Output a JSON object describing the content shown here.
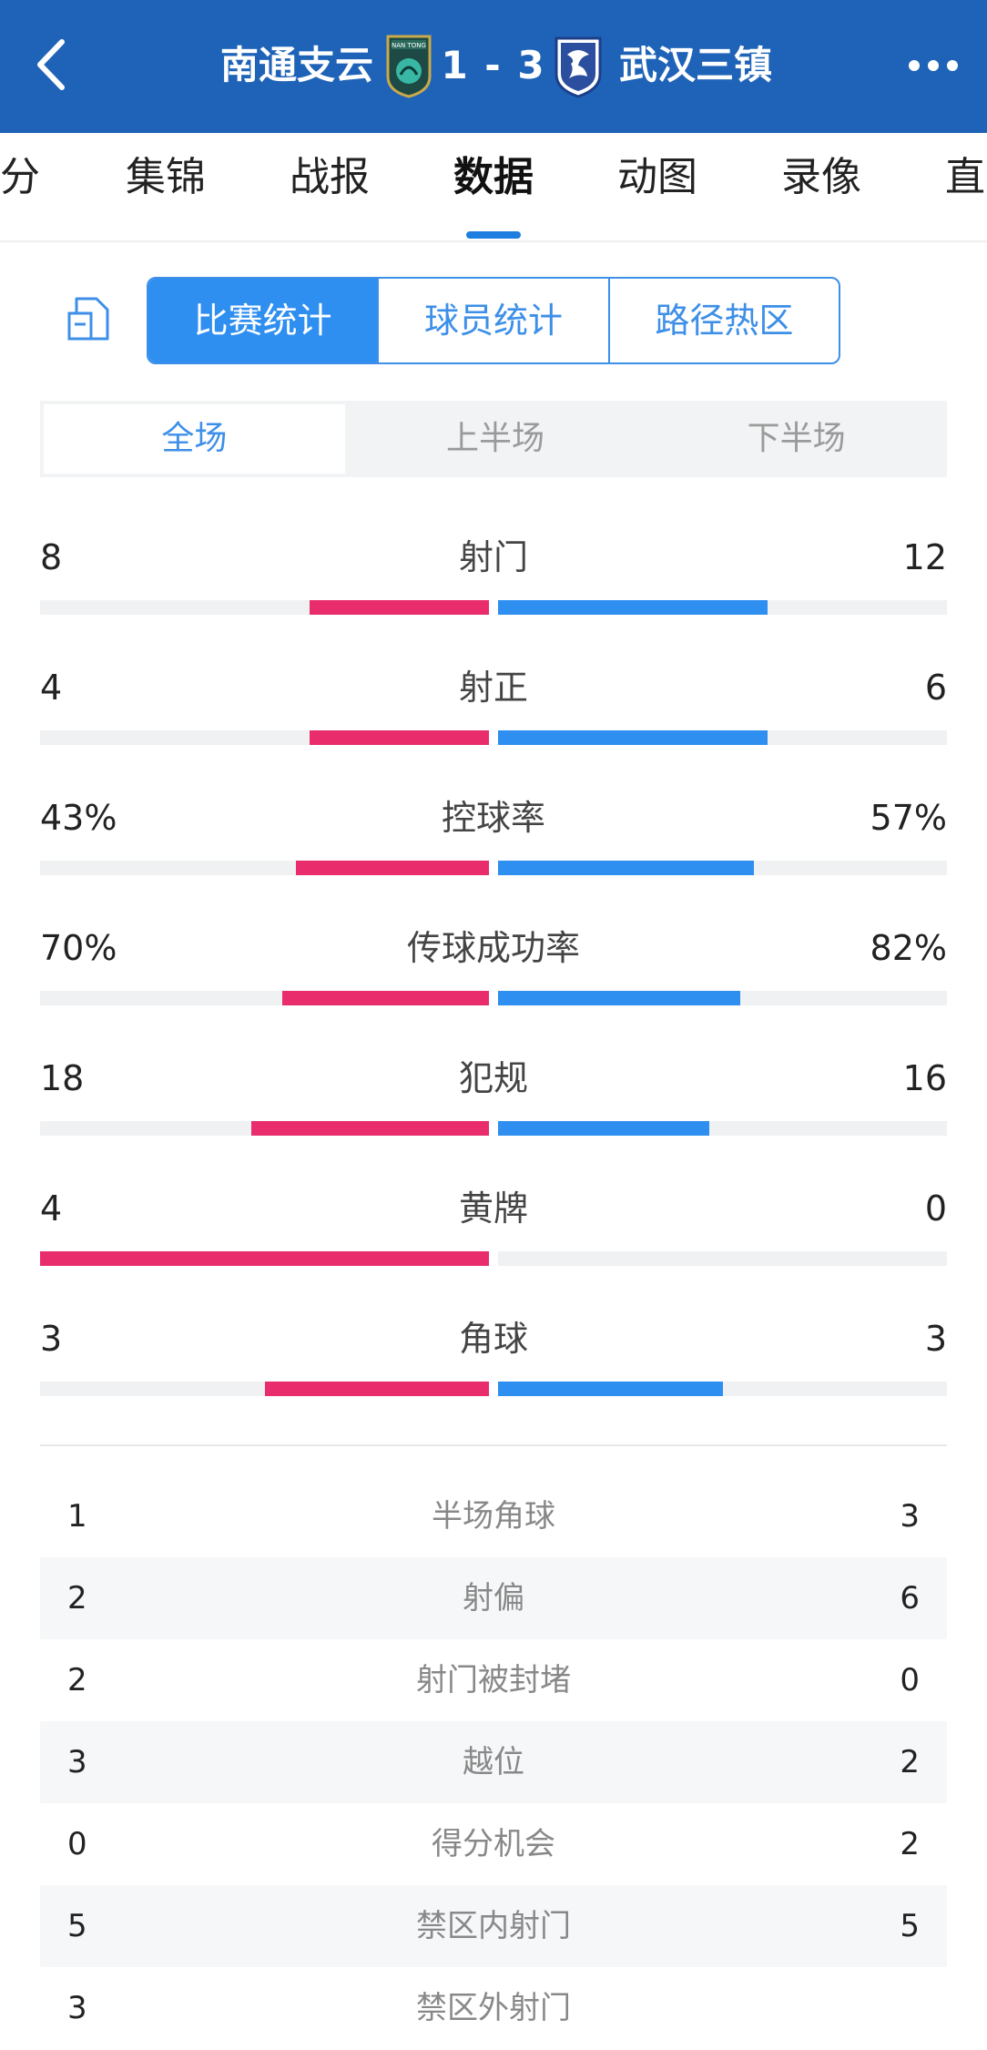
{
  "header": {
    "home_team": "南通支云",
    "score": "1 - 3",
    "away_team": "武汉三镇",
    "home_badge_text": "NAN TONG",
    "background_color": "#1f63b8"
  },
  "nav": {
    "tabs": [
      "分",
      "集锦",
      "战报",
      "数据",
      "动图",
      "录像",
      "直"
    ],
    "active": "数据"
  },
  "segmented": {
    "options": [
      "比赛统计",
      "球员统计",
      "路径热区"
    ],
    "active": "比赛统计"
  },
  "period": {
    "options": [
      "全场",
      "上半场",
      "下半场"
    ],
    "active": "全场"
  },
  "colors": {
    "home_bar": "#e92c6c",
    "away_bar": "#2f8ff0",
    "accent": "#3d8fe8"
  },
  "bar_stats": [
    {
      "label": "射门",
      "home": "8",
      "away": "12",
      "home_fill": 0.4,
      "away_fill": 0.6
    },
    {
      "label": "射正",
      "home": "4",
      "away": "6",
      "home_fill": 0.4,
      "away_fill": 0.6
    },
    {
      "label": "控球率",
      "home": "43%",
      "away": "57%",
      "home_fill": 0.43,
      "away_fill": 0.57
    },
    {
      "label": "传球成功率",
      "home": "70%",
      "away": "82%",
      "home_fill": 0.46,
      "away_fill": 0.54
    },
    {
      "label": "犯规",
      "home": "18",
      "away": "16",
      "home_fill": 0.53,
      "away_fill": 0.47
    },
    {
      "label": "黄牌",
      "home": "4",
      "away": "0",
      "home_fill": 1.0,
      "away_fill": 0.0
    },
    {
      "label": "角球",
      "home": "3",
      "away": "3",
      "home_fill": 0.5,
      "away_fill": 0.5
    }
  ],
  "table_stats": [
    {
      "label": "半场角球",
      "home": "1",
      "away": "3"
    },
    {
      "label": "射偏",
      "home": "2",
      "away": "6"
    },
    {
      "label": "射门被封堵",
      "home": "2",
      "away": "0"
    },
    {
      "label": "越位",
      "home": "3",
      "away": "2"
    },
    {
      "label": "得分机会",
      "home": "0",
      "away": "2"
    },
    {
      "label": "禁区内射门",
      "home": "5",
      "away": "5"
    },
    {
      "label": "禁区外射门",
      "home": "3",
      "away": ""
    }
  ]
}
